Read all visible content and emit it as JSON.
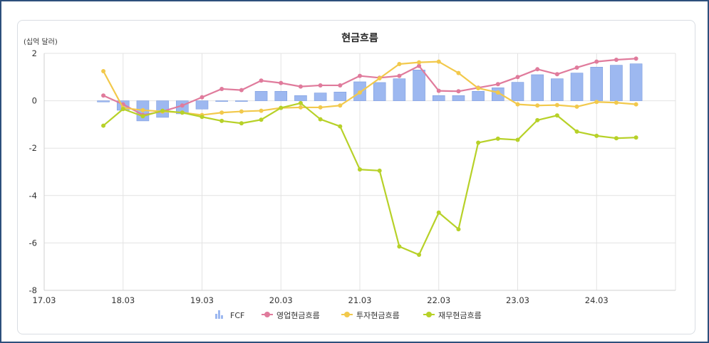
{
  "chart_data": {
    "type": "bar+line",
    "title": "현금흐름",
    "unit_label": "(십억 달러)",
    "y_ticks": [
      "2",
      "0",
      "-2",
      "-4",
      "-6",
      "-8"
    ],
    "ylim": [
      -8,
      2
    ],
    "x_ticks": [
      "17.03",
      "18.03",
      "19.03",
      "20.03",
      "21.03",
      "22.03",
      "23.03",
      "24.03"
    ],
    "xlim": [
      2017.0,
      2025.0
    ],
    "grid": true,
    "legend_position": "bottom",
    "x": [
      2017.75,
      2018.0,
      2018.25,
      2018.5,
      2018.75,
      2019.0,
      2019.25,
      2019.5,
      2019.75,
      2020.0,
      2020.25,
      2020.5,
      2020.75,
      2021.0,
      2021.25,
      2021.5,
      2021.75,
      2022.0,
      2022.25,
      2022.5,
      2022.75,
      2023.0,
      2023.25,
      2023.5,
      2023.75,
      2024.0,
      2024.25,
      2024.5
    ],
    "series": [
      {
        "name": "FCF",
        "kind": "bar",
        "color": "#9db8f0",
        "values": [
          -0.05,
          -0.4,
          -0.85,
          -0.7,
          -0.55,
          -0.35,
          -0.02,
          -0.02,
          0.4,
          0.4,
          0.22,
          0.33,
          0.37,
          0.8,
          0.77,
          0.93,
          1.3,
          0.22,
          0.22,
          0.4,
          0.55,
          0.78,
          1.1,
          0.93,
          1.17,
          1.42,
          1.5,
          1.56
        ]
      },
      {
        "name": "영업현금흐름",
        "kind": "line",
        "color": "#e07b9c",
        "values": [
          0.22,
          -0.15,
          -0.6,
          -0.45,
          -0.2,
          0.15,
          0.5,
          0.45,
          0.85,
          0.75,
          0.6,
          0.65,
          0.65,
          1.05,
          0.97,
          1.05,
          1.47,
          0.42,
          0.4,
          0.55,
          0.7,
          1.0,
          1.33,
          1.12,
          1.4,
          1.65,
          1.73,
          1.78
        ]
      },
      {
        "name": "투자현금흐름",
        "kind": "line",
        "color": "#f2c94c",
        "values": [
          1.25,
          -0.3,
          -0.4,
          -0.45,
          -0.5,
          -0.6,
          -0.5,
          -0.45,
          -0.42,
          -0.3,
          -0.28,
          -0.28,
          -0.2,
          0.35,
          0.95,
          1.55,
          1.62,
          1.65,
          1.17,
          0.53,
          0.35,
          -0.15,
          -0.2,
          -0.18,
          -0.25,
          -0.05,
          -0.08,
          -0.15
        ]
      },
      {
        "name": "재무현금흐름",
        "kind": "line",
        "color": "#b7d128",
        "values": [
          -1.05,
          -0.35,
          -0.65,
          -0.42,
          -0.5,
          -0.68,
          -0.85,
          -0.95,
          -0.8,
          -0.3,
          -0.1,
          -0.78,
          -1.08,
          -2.9,
          -2.95,
          -6.15,
          -6.5,
          -4.72,
          -5.42,
          -1.77,
          -1.6,
          -1.65,
          -0.82,
          -0.62,
          -1.3,
          -1.48,
          -1.58,
          -1.55
        ]
      }
    ]
  }
}
